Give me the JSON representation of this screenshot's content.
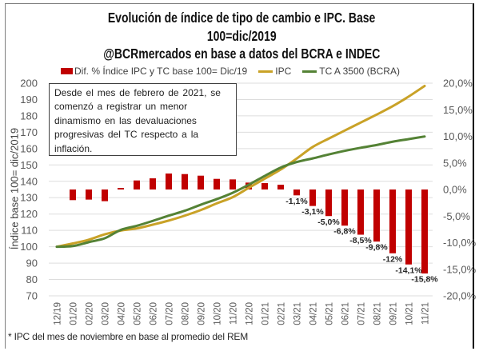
{
  "title": {
    "line1": "Evolución de índice de tipo de cambio e IPC. Base",
    "line2": "100=dic/2019",
    "line3": "@BCRmercados en base a datos del BCRA e INDEC"
  },
  "annotation": {
    "lines": [
      "Desde el mes de febrero de 2021, se",
      "comenzó a registrar un menor",
      "dinamismo en las devaluaciones",
      "progresivas del TC respecto a la",
      "inflación."
    ]
  },
  "footnote": "* IPC del mes de noviembre en base al promedio del REM",
  "colors": {
    "bar": "#C00000",
    "ipc": "#C9A227",
    "tc": "#548235",
    "grid": "#DDDDDD",
    "annotation_border": "#404040"
  },
  "chart_data": {
    "type": "bar",
    "combo": true,
    "title": "Evolución de índice de tipo de cambio e IPC. Base 100=dic/2019 — @BCRmercados en base a datos del BCRA e INDEC",
    "xlabel": "",
    "ylabel": "Índice base 100= dic/2019",
    "y2label": "",
    "legend": "top",
    "grid": true,
    "categories": [
      "12/19",
      "01/20",
      "02/20",
      "03/20",
      "04/20",
      "05/20",
      "06/20",
      "07/20",
      "08/20",
      "09/20",
      "10/20",
      "11/20",
      "12/20",
      "01/21",
      "02/21",
      "03/21",
      "04/21",
      "05/21",
      "06/21",
      "07/21",
      "08/21",
      "09/21",
      "10/21",
      "11/21"
    ],
    "ylim": [
      70,
      200
    ],
    "y_ticks": [
      200,
      190,
      180,
      170,
      160,
      150,
      140,
      130,
      120,
      110,
      100,
      90,
      80,
      70
    ],
    "y_tick_labels": [
      "200",
      "190",
      "180",
      "170",
      "160",
      "150",
      "140",
      "130",
      "120",
      "110",
      "100",
      "90",
      "80",
      "70"
    ],
    "y2lim": [
      -20,
      20
    ],
    "y2_ticks": [
      20,
      15,
      10,
      5,
      0,
      -5,
      -10,
      -15,
      -20
    ],
    "y2_tick_labels": [
      "20,0%",
      "15,0%",
      "10,0%",
      "5,0%",
      "0,0%",
      "-5,0%",
      "-10,0%",
      "-15,0%",
      "-20,0%"
    ],
    "series": [
      {
        "name": "Dif. % Índice IPC y TC base 100= Dic/19",
        "type": "bar",
        "axis": "right",
        "unit": "%",
        "values": [
          0,
          -2.0,
          -1.9,
          -2.2,
          0.3,
          1.7,
          2.1,
          3.0,
          2.9,
          2.6,
          2.0,
          1.9,
          1.3,
          1.2,
          0.9,
          -1.1,
          -3.1,
          -5.0,
          -6.8,
          -8.5,
          -9.8,
          -12.0,
          -14.1,
          -15.8
        ],
        "data_labels": [
          null,
          null,
          null,
          null,
          null,
          null,
          null,
          null,
          null,
          null,
          null,
          null,
          null,
          null,
          null,
          "-1,1%",
          "-3,1%",
          "-5,0%",
          "-6,8%",
          "-8,5%",
          "-9,8%",
          "-12%",
          "-14,1%",
          "-15,8%"
        ]
      },
      {
        "name": "IPC",
        "type": "line",
        "axis": "left",
        "values": [
          100,
          102.0,
          104.3,
          107.6,
          109.9,
          111.2,
          113.5,
          116.0,
          119.0,
          122.4,
          126.5,
          130.3,
          136.0,
          141.6,
          147.2,
          153.9,
          161.0,
          166.1,
          171.0,
          175.9,
          180.8,
          185.9,
          191.8,
          198.3
        ]
      },
      {
        "name": "TC A 3500 (BCRA)",
        "type": "line",
        "axis": "left",
        "values": [
          100,
          100.4,
          102.8,
          105.2,
          110.3,
          112.8,
          115.8,
          119.0,
          122.0,
          125.7,
          129.1,
          133.0,
          137.9,
          143.3,
          148.4,
          151.8,
          154.0,
          156.4,
          158.6,
          160.5,
          162.2,
          164.2,
          165.8,
          167.4
        ]
      }
    ]
  }
}
